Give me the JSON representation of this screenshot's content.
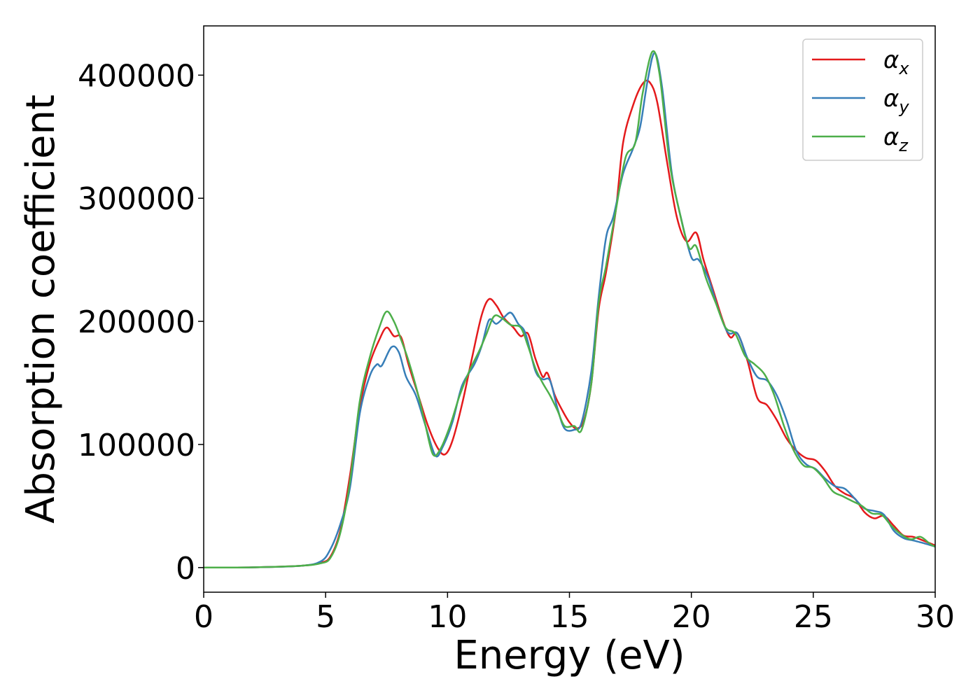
{
  "chart_data": {
    "type": "line",
    "title": "",
    "xlabel": "Energy (eV)",
    "ylabel": "Absorption coefficient",
    "xlim": [
      0,
      30
    ],
    "ylim": [
      -20000,
      440000
    ],
    "xticks": [
      "0",
      "5",
      "10",
      "15",
      "20",
      "25",
      "30"
    ],
    "yticks": [
      "0",
      "100000",
      "200000",
      "300000",
      "400000"
    ],
    "grid": false,
    "legend": "top-right",
    "series": [
      {
        "name": "α_x",
        "label_main": "α",
        "label_sub": "x",
        "color": "#e41a1c",
        "points": [
          [
            0,
            0
          ],
          [
            2,
            200
          ],
          [
            4,
            1500
          ],
          [
            4.8,
            4000
          ],
          [
            5.2,
            9000
          ],
          [
            5.6,
            30000
          ],
          [
            6,
            75000
          ],
          [
            6.4,
            130000
          ],
          [
            6.8,
            165000
          ],
          [
            7.2,
            185000
          ],
          [
            7.5,
            195000
          ],
          [
            7.8,
            188000
          ],
          [
            8.1,
            187000
          ],
          [
            8.4,
            165000
          ],
          [
            8.8,
            140000
          ],
          [
            9.2,
            115000
          ],
          [
            9.6,
            97000
          ],
          [
            9.9,
            92000
          ],
          [
            10.2,
            103000
          ],
          [
            10.6,
            133000
          ],
          [
            11,
            170000
          ],
          [
            11.4,
            205000
          ],
          [
            11.7,
            218000
          ],
          [
            12,
            213000
          ],
          [
            12.3,
            203000
          ],
          [
            12.7,
            195000
          ],
          [
            13,
            188000
          ],
          [
            13.3,
            190000
          ],
          [
            13.6,
            170000
          ],
          [
            13.9,
            155000
          ],
          [
            14.1,
            158000
          ],
          [
            14.4,
            140000
          ],
          [
            14.7,
            128000
          ],
          [
            15,
            118000
          ],
          [
            15.3,
            113000
          ],
          [
            15.6,
            120000
          ],
          [
            15.9,
            150000
          ],
          [
            16.2,
            210000
          ],
          [
            16.5,
            240000
          ],
          [
            16.9,
            290000
          ],
          [
            17.2,
            345000
          ],
          [
            17.6,
            375000
          ],
          [
            18,
            393000
          ],
          [
            18.3,
            394000
          ],
          [
            18.6,
            378000
          ],
          [
            19,
            330000
          ],
          [
            19.4,
            285000
          ],
          [
            19.8,
            265000
          ],
          [
            20.2,
            272000
          ],
          [
            20.5,
            250000
          ],
          [
            20.9,
            225000
          ],
          [
            21.3,
            200000
          ],
          [
            21.6,
            187000
          ],
          [
            21.9,
            190000
          ],
          [
            22.3,
            168000
          ],
          [
            22.7,
            138000
          ],
          [
            23.1,
            132000
          ],
          [
            23.5,
            120000
          ],
          [
            23.9,
            105000
          ],
          [
            24.3,
            95000
          ],
          [
            24.7,
            89000
          ],
          [
            25.1,
            87000
          ],
          [
            25.5,
            78000
          ],
          [
            25.9,
            66000
          ],
          [
            26.3,
            60000
          ],
          [
            26.7,
            56000
          ],
          [
            27.1,
            45000
          ],
          [
            27.5,
            40000
          ],
          [
            27.9,
            42000
          ],
          [
            28.3,
            34000
          ],
          [
            28.7,
            26000
          ],
          [
            29.1,
            25000
          ],
          [
            29.5,
            22000
          ],
          [
            30,
            18000
          ]
        ]
      },
      {
        "name": "α_y",
        "label_main": "α",
        "label_sub": "y",
        "color": "#377eb8",
        "points": [
          [
            0,
            0
          ],
          [
            2,
            200
          ],
          [
            4,
            1500
          ],
          [
            4.8,
            5000
          ],
          [
            5.2,
            15000
          ],
          [
            5.6,
            35000
          ],
          [
            6,
            65000
          ],
          [
            6.4,
            125000
          ],
          [
            6.8,
            155000
          ],
          [
            7.1,
            165000
          ],
          [
            7.3,
            164000
          ],
          [
            7.7,
            179000
          ],
          [
            8,
            175000
          ],
          [
            8.3,
            155000
          ],
          [
            8.7,
            140000
          ],
          [
            9.1,
            115000
          ],
          [
            9.5,
            91000
          ],
          [
            9.8,
            98000
          ],
          [
            10.2,
            118000
          ],
          [
            10.6,
            148000
          ],
          [
            11.1,
            165000
          ],
          [
            11.4,
            180000
          ],
          [
            11.7,
            201000
          ],
          [
            12,
            198000
          ],
          [
            12.3,
            203000
          ],
          [
            12.6,
            207000
          ],
          [
            12.9,
            198000
          ],
          [
            13.2,
            190000
          ],
          [
            13.6,
            160000
          ],
          [
            13.9,
            153000
          ],
          [
            14.2,
            152000
          ],
          [
            14.5,
            130000
          ],
          [
            14.8,
            113000
          ],
          [
            15.2,
            112000
          ],
          [
            15.5,
            118000
          ],
          [
            15.9,
            160000
          ],
          [
            16.2,
            220000
          ],
          [
            16.5,
            268000
          ],
          [
            16.8,
            285000
          ],
          [
            17.2,
            320000
          ],
          [
            17.6,
            340000
          ],
          [
            17.9,
            358000
          ],
          [
            18.2,
            395000
          ],
          [
            18.5,
            418000
          ],
          [
            18.8,
            390000
          ],
          [
            19.2,
            320000
          ],
          [
            19.6,
            282000
          ],
          [
            20,
            252000
          ],
          [
            20.3,
            250000
          ],
          [
            20.7,
            235000
          ],
          [
            21.1,
            210000
          ],
          [
            21.5,
            191000
          ],
          [
            21.9,
            190000
          ],
          [
            22.3,
            170000
          ],
          [
            22.7,
            155000
          ],
          [
            23.1,
            152000
          ],
          [
            23.5,
            140000
          ],
          [
            23.9,
            120000
          ],
          [
            24.3,
            95000
          ],
          [
            24.7,
            84000
          ],
          [
            25.1,
            80000
          ],
          [
            25.5,
            72000
          ],
          [
            25.9,
            66000
          ],
          [
            26.3,
            64000
          ],
          [
            26.7,
            56000
          ],
          [
            27.1,
            48000
          ],
          [
            27.5,
            46000
          ],
          [
            27.9,
            43000
          ],
          [
            28.3,
            30000
          ],
          [
            28.7,
            24000
          ],
          [
            29.1,
            22000
          ],
          [
            29.5,
            20000
          ],
          [
            30,
            17000
          ]
        ]
      },
      {
        "name": "α_z",
        "label_main": "α",
        "label_sub": "z",
        "color": "#4daf4a",
        "points": [
          [
            0,
            0
          ],
          [
            2,
            200
          ],
          [
            4,
            1500
          ],
          [
            4.8,
            3500
          ],
          [
            5.2,
            8000
          ],
          [
            5.6,
            28000
          ],
          [
            6,
            70000
          ],
          [
            6.4,
            135000
          ],
          [
            6.8,
            170000
          ],
          [
            7.2,
            195000
          ],
          [
            7.5,
            208000
          ],
          [
            7.8,
            200000
          ],
          [
            8.1,
            185000
          ],
          [
            8.4,
            168000
          ],
          [
            8.8,
            140000
          ],
          [
            9.1,
            115000
          ],
          [
            9.4,
            92000
          ],
          [
            9.7,
            96000
          ],
          [
            10.1,
            115000
          ],
          [
            10.5,
            140000
          ],
          [
            10.9,
            160000
          ],
          [
            11.3,
            176000
          ],
          [
            11.6,
            190000
          ],
          [
            11.9,
            204000
          ],
          [
            12.2,
            203000
          ],
          [
            12.6,
            197000
          ],
          [
            13,
            195000
          ],
          [
            13.3,
            180000
          ],
          [
            13.6,
            162000
          ],
          [
            13.9,
            150000
          ],
          [
            14.2,
            140000
          ],
          [
            14.5,
            128000
          ],
          [
            14.8,
            115000
          ],
          [
            15.2,
            115000
          ],
          [
            15.5,
            112000
          ],
          [
            15.9,
            150000
          ],
          [
            16.2,
            215000
          ],
          [
            16.5,
            245000
          ],
          [
            16.9,
            290000
          ],
          [
            17.3,
            333000
          ],
          [
            17.7,
            345000
          ],
          [
            18,
            385000
          ],
          [
            18.4,
            419000
          ],
          [
            18.7,
            400000
          ],
          [
            19.1,
            330000
          ],
          [
            19.5,
            290000
          ],
          [
            19.9,
            260000
          ],
          [
            20.2,
            261000
          ],
          [
            20.6,
            235000
          ],
          [
            21,
            215000
          ],
          [
            21.4,
            195000
          ],
          [
            21.8,
            190000
          ],
          [
            22.2,
            172000
          ],
          [
            22.6,
            165000
          ],
          [
            23,
            157000
          ],
          [
            23.4,
            140000
          ],
          [
            23.8,
            115000
          ],
          [
            24.2,
            95000
          ],
          [
            24.6,
            83000
          ],
          [
            25,
            81000
          ],
          [
            25.4,
            73000
          ],
          [
            25.8,
            62000
          ],
          [
            26.2,
            58000
          ],
          [
            26.6,
            54000
          ],
          [
            27,
            50000
          ],
          [
            27.4,
            44000
          ],
          [
            27.8,
            43000
          ],
          [
            28.2,
            34000
          ],
          [
            28.6,
            27000
          ],
          [
            29,
            23000
          ],
          [
            29.4,
            25000
          ],
          [
            29.8,
            19000
          ],
          [
            30,
            17000
          ]
        ]
      }
    ]
  }
}
